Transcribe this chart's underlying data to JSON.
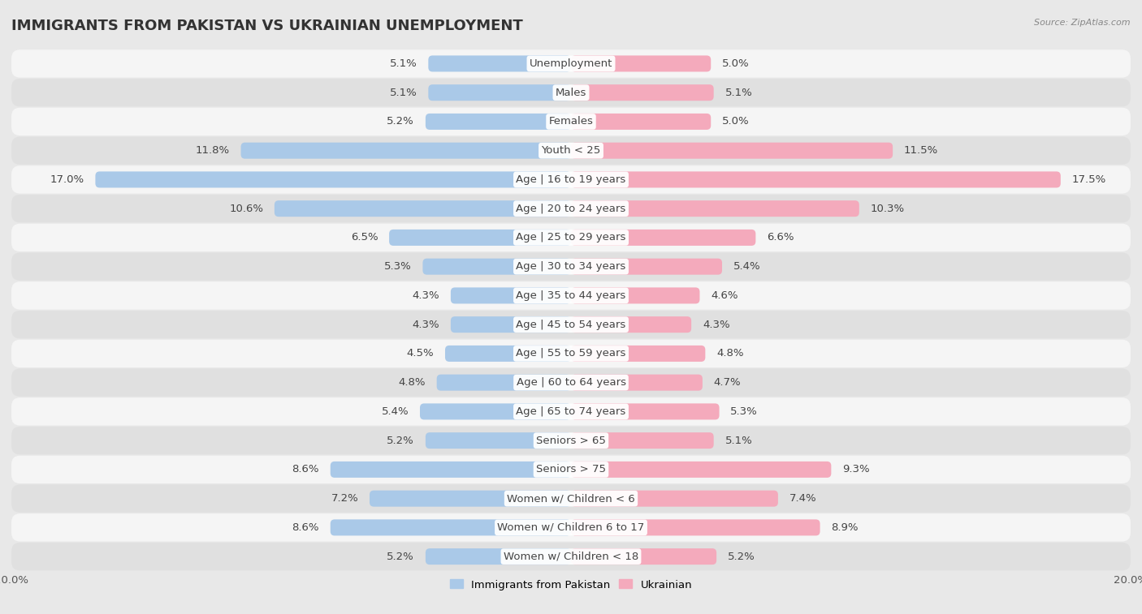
{
  "title": "IMMIGRANTS FROM PAKISTAN VS UKRAINIAN UNEMPLOYMENT",
  "source": "Source: ZipAtlas.com",
  "categories": [
    "Unemployment",
    "Males",
    "Females",
    "Youth < 25",
    "Age | 16 to 19 years",
    "Age | 20 to 24 years",
    "Age | 25 to 29 years",
    "Age | 30 to 34 years",
    "Age | 35 to 44 years",
    "Age | 45 to 54 years",
    "Age | 55 to 59 years",
    "Age | 60 to 64 years",
    "Age | 65 to 74 years",
    "Seniors > 65",
    "Seniors > 75",
    "Women w/ Children < 6",
    "Women w/ Children 6 to 17",
    "Women w/ Children < 18"
  ],
  "pakistan_values": [
    5.1,
    5.1,
    5.2,
    11.8,
    17.0,
    10.6,
    6.5,
    5.3,
    4.3,
    4.3,
    4.5,
    4.8,
    5.4,
    5.2,
    8.6,
    7.2,
    8.6,
    5.2
  ],
  "ukrainian_values": [
    5.0,
    5.1,
    5.0,
    11.5,
    17.5,
    10.3,
    6.6,
    5.4,
    4.6,
    4.3,
    4.8,
    4.7,
    5.3,
    5.1,
    9.3,
    7.4,
    8.9,
    5.2
  ],
  "pakistan_color": "#aac9e8",
  "ukrainian_color": "#f4aabc",
  "background_color": "#e8e8e8",
  "row_color_odd": "#f5f5f5",
  "row_color_even": "#e0e0e0",
  "xlim": 20.0,
  "title_fontsize": 13,
  "label_fontsize": 9.5,
  "tick_fontsize": 9.5,
  "value_fontsize": 9.5
}
